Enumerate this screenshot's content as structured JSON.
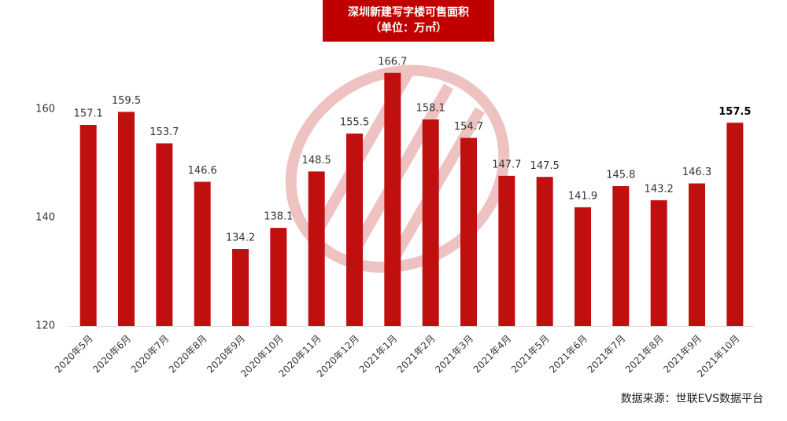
{
  "chart_data": {
    "type": "bar",
    "title": "深圳新建写字楼可售面积",
    "subtitle": "（单位：万㎡）",
    "categories": [
      "2020年5月",
      "2020年6月",
      "2020年7月",
      "2020年8月",
      "2020年9月",
      "2020年10月",
      "2020年11月",
      "2020年12月",
      "2021年1月",
      "2021年2月",
      "2021年3月",
      "2021年4月",
      "2021年5月",
      "2021年6月",
      "2021年7月",
      "2021年8月",
      "2021年9月",
      "2021年10月"
    ],
    "values": [
      157.1,
      159.5,
      153.7,
      146.6,
      134.2,
      138.1,
      148.5,
      155.5,
      166.7,
      158.1,
      154.7,
      147.7,
      147.5,
      141.9,
      145.8,
      143.2,
      146.3,
      157.5
    ],
    "color": "#c00f0f",
    "ylim": [
      120,
      170
    ],
    "yticks": [
      120,
      140,
      160
    ],
    "grid": false,
    "source": "数据来源：世联EVS数据平台"
  }
}
